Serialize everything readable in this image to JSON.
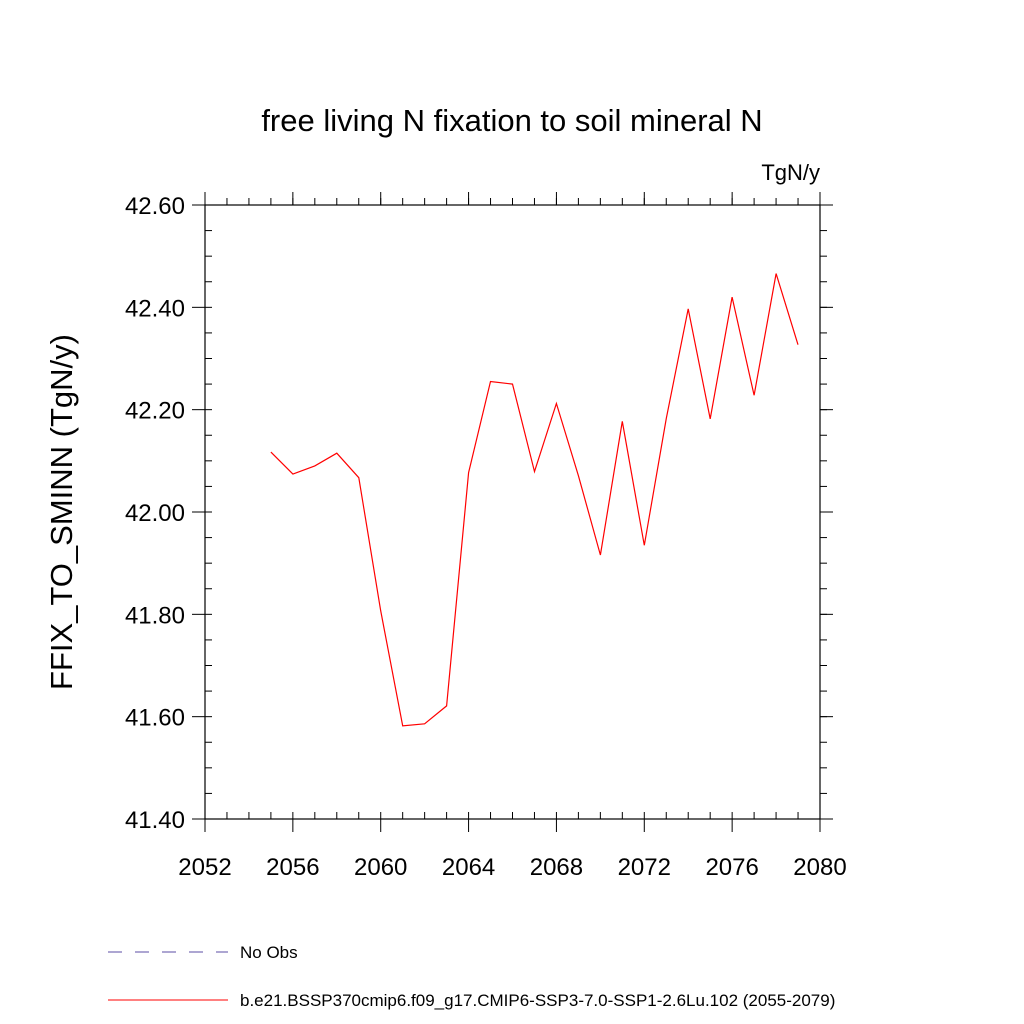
{
  "chart_data": {
    "type": "line",
    "title": "free living N fixation to soil mineral N",
    "units_label": "TgN/y",
    "ylabel": "FFIX_TO_SMINN  (TgN/y)",
    "xlabel": "",
    "xlim": [
      2052,
      2080
    ],
    "ylim": [
      41.4,
      42.6
    ],
    "x_ticks": [
      2052,
      2056,
      2060,
      2064,
      2068,
      2072,
      2076,
      2080
    ],
    "x_tick_labels": [
      "2052",
      "2056",
      "2060",
      "2064",
      "2068",
      "2072",
      "2076",
      "2080"
    ],
    "y_ticks": [
      41.4,
      41.6,
      41.8,
      42.0,
      42.2,
      42.4,
      42.6
    ],
    "y_tick_labels": [
      "41.40",
      "41.60",
      "41.80",
      "42.00",
      "42.20",
      "42.40",
      "42.60"
    ],
    "y_minor_step": 0.05,
    "x_minor_step": 1,
    "grid": false,
    "legend_position": "bottom",
    "series": [
      {
        "name": "b.e21.BSSP370cmip6.f09_g17.CMIP6-SSP3-7.0-SSP1-2.6Lu.102 (2055-2079)",
        "color": "#ff0000",
        "dash": "solid",
        "x": [
          2055,
          2056,
          2057,
          2058,
          2059,
          2060,
          2061,
          2062,
          2063,
          2064,
          2065,
          2066,
          2067,
          2068,
          2069,
          2070,
          2071,
          2072,
          2073,
          2074,
          2075,
          2076,
          2077,
          2078,
          2079
        ],
        "y": [
          42.117,
          42.074,
          42.09,
          42.115,
          42.067,
          41.807,
          41.582,
          41.586,
          41.621,
          42.077,
          42.255,
          42.25,
          42.079,
          42.212,
          42.071,
          41.916,
          42.177,
          41.935,
          42.183,
          42.397,
          42.182,
          42.42,
          42.228,
          42.466,
          42.327
        ]
      }
    ],
    "legend": [
      {
        "label": "No Obs",
        "color": "#5b4ea6",
        "dash": "dashed"
      },
      {
        "label": "b.e21.BSSP370cmip6.f09_g17.CMIP6-SSP3-7.0-SSP1-2.6Lu.102 (2055-2079)",
        "color": "#ff0000",
        "dash": "solid"
      }
    ]
  }
}
